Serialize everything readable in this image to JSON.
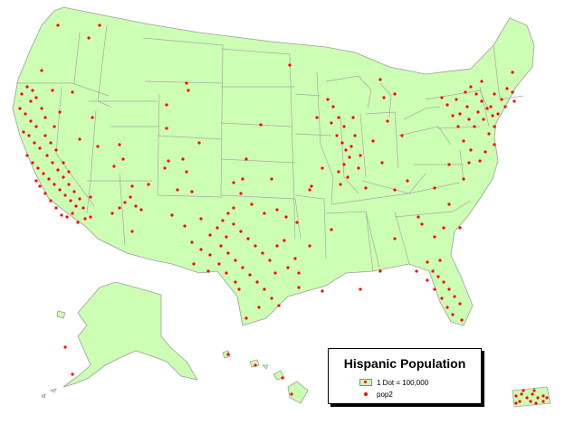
{
  "legend": {
    "title": "Hispanic Population",
    "items": [
      {
        "symbol": "land-with-dot",
        "label": "1 Dot = 100,000"
      },
      {
        "symbol": "red-dot",
        "label": "pop2"
      }
    ]
  },
  "colors": {
    "land": "#ccffb3",
    "border": "#9c9c9c",
    "dot": "#ff0000",
    "background": "#ffffff"
  }
}
